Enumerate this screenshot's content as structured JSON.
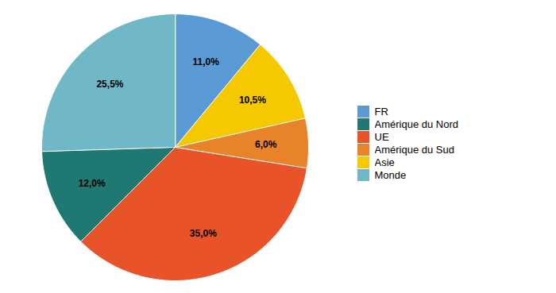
{
  "chart_data": {
    "type": "pie",
    "categories": [
      "FR",
      "Asie",
      "Amérique du Sud",
      "UE",
      "Amérique du Nord",
      "Monde"
    ],
    "values": [
      11.0,
      10.5,
      6.0,
      35.0,
      12.0,
      25.5
    ],
    "value_labels": [
      "11,0%",
      "10,5%",
      "6,0%",
      "35,0%",
      "12,0%",
      "25,5%"
    ],
    "colors": [
      "#5B9BD5",
      "#F5C800",
      "#E8832A",
      "#E8532A",
      "#1F7872",
      "#70B8C8"
    ],
    "data_labels": true,
    "legend": "right",
    "legend_labels": [
      "FR",
      "Amérique du Nord",
      "UE",
      "Amérique du Sud",
      "Asie",
      "Monde"
    ]
  }
}
